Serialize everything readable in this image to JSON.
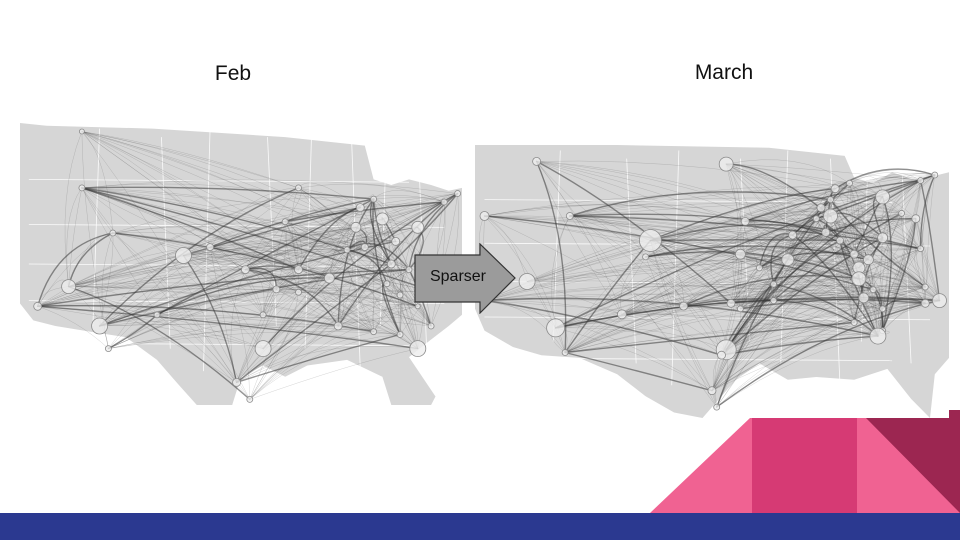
{
  "slide": {
    "left_title": "Feb",
    "right_title": "March",
    "arrow_label": "Sparser"
  },
  "colors": {
    "map_fill": "#d6d6d6",
    "map_border": "#ffffff",
    "edge": "#3a3a3a",
    "node_fill": "#eeeeee",
    "node_stroke": "#8a8a8a",
    "arrow_fill": "#9b9b9b",
    "pink": "#f06292",
    "magenta": "#d63a74",
    "maroon": "#9c2651",
    "navy": "#2b3990"
  }
}
